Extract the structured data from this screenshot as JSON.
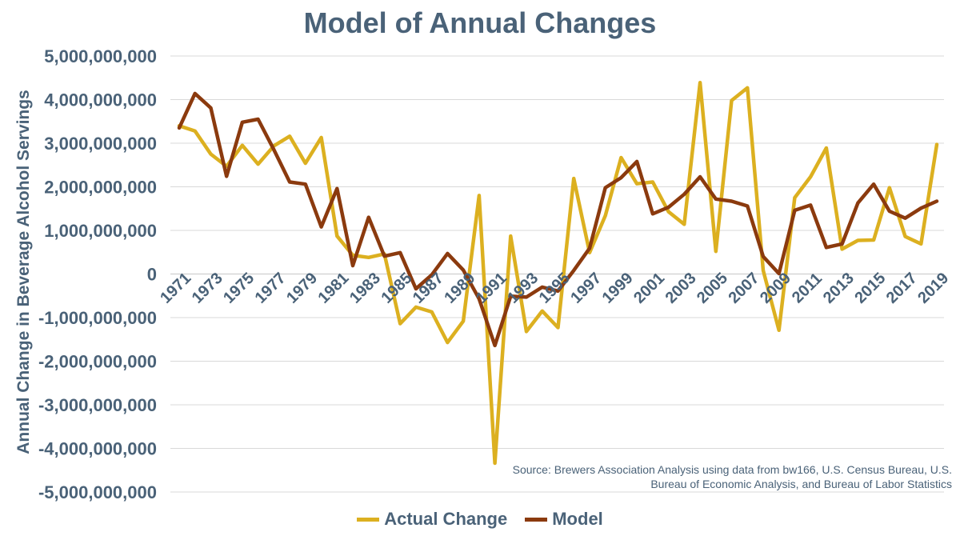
{
  "chart_data": {
    "type": "line",
    "title": "Model of Annual Changes",
    "ylabel": "Annual Change in Beverage Alcohol Servings",
    "xlabel": "",
    "ylim": [
      -5000000000,
      5000000000
    ],
    "y_ticks": [
      "5,000,000,000",
      "4,000,000,000",
      "3,000,000,000",
      "2,000,000,000",
      "1,000,000,000",
      "0",
      "-1,000,000,000",
      "-2,000,000,000",
      "-3,000,000,000",
      "-4,000,000,000",
      "-5,000,000,000"
    ],
    "x_tick_labels": [
      "1971",
      "1973",
      "1975",
      "1977",
      "1979",
      "1981",
      "1983",
      "1985",
      "1987",
      "1989",
      "1991",
      "1993",
      "1995",
      "1997",
      "1999",
      "2001",
      "2003",
      "2005",
      "2007",
      "2009",
      "2011",
      "2013",
      "2015",
      "2017",
      "2019"
    ],
    "x": [
      1971,
      1972,
      1973,
      1974,
      1975,
      1976,
      1977,
      1978,
      1979,
      1980,
      1981,
      1982,
      1983,
      1984,
      1985,
      1986,
      1987,
      1988,
      1989,
      1990,
      1991,
      1992,
      1993,
      1994,
      1995,
      1996,
      1997,
      1998,
      1999,
      2000,
      2001,
      2002,
      2003,
      2004,
      2005,
      2006,
      2007,
      2008,
      2009,
      2010,
      2011,
      2012,
      2013,
      2014,
      2015,
      2016,
      2017,
      2018,
      2019
    ],
    "grid": "horizontal",
    "legend_position": "bottom",
    "series": [
      {
        "name": "Actual Change",
        "color": "#dcb020",
        "values": [
          3400000000,
          3280000000,
          2750000000,
          2470000000,
          2950000000,
          2520000000,
          2940000000,
          3160000000,
          2540000000,
          3130000000,
          870000000,
          430000000,
          380000000,
          460000000,
          -1140000000,
          -760000000,
          -870000000,
          -1570000000,
          -1080000000,
          1800000000,
          -4340000000,
          870000000,
          -1320000000,
          -850000000,
          -1230000000,
          2190000000,
          490000000,
          1340000000,
          2670000000,
          2070000000,
          2110000000,
          1430000000,
          1140000000,
          4390000000,
          520000000,
          3980000000,
          4270000000,
          80000000,
          -1290000000,
          1750000000,
          2230000000,
          2890000000,
          570000000,
          770000000,
          780000000,
          1980000000,
          860000000,
          690000000,
          2970000000
        ]
      },
      {
        "name": "Model",
        "color": "#8b3a0e",
        "values": [
          3350000000,
          4140000000,
          3810000000,
          2240000000,
          3480000000,
          3550000000,
          2850000000,
          2110000000,
          2060000000,
          1080000000,
          1960000000,
          190000000,
          1300000000,
          410000000,
          490000000,
          -340000000,
          -20000000,
          470000000,
          90000000,
          -570000000,
          -1640000000,
          -510000000,
          -530000000,
          -300000000,
          -390000000,
          80000000,
          590000000,
          1980000000,
          2210000000,
          2580000000,
          1380000000,
          1530000000,
          1830000000,
          2230000000,
          1720000000,
          1670000000,
          1560000000,
          400000000,
          10000000,
          1460000000,
          1580000000,
          610000000,
          690000000,
          1630000000,
          2060000000,
          1440000000,
          1280000000,
          1510000000,
          1670000000
        ]
      }
    ],
    "annotation": "Source: Brewers Association Analysis using data from bw166, U.S. Census Bureau, U.S. Bureau of Economic Analysis, and Bureau of Labor Statistics"
  }
}
